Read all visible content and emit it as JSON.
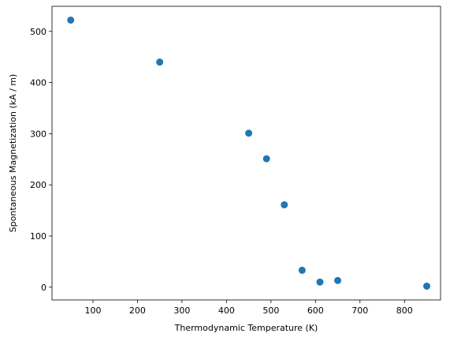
{
  "chart_data": {
    "type": "scatter",
    "x_label": "Thermodynamic Temperature (K)",
    "y_label": "Spontaneous Magnetization (kA / m)",
    "x": [
      50,
      250,
      450,
      490,
      530,
      570,
      610,
      650,
      850
    ],
    "values": [
      522,
      440,
      301,
      251,
      161,
      33,
      10,
      13,
      2
    ],
    "color": "#1f77b4",
    "xlim": [
      8,
      881
    ],
    "ylim": [
      -25,
      549
    ],
    "xticks": [
      100,
      200,
      300,
      400,
      500,
      600,
      700,
      800
    ],
    "yticks": [
      0,
      100,
      200,
      300,
      400,
      500
    ]
  }
}
